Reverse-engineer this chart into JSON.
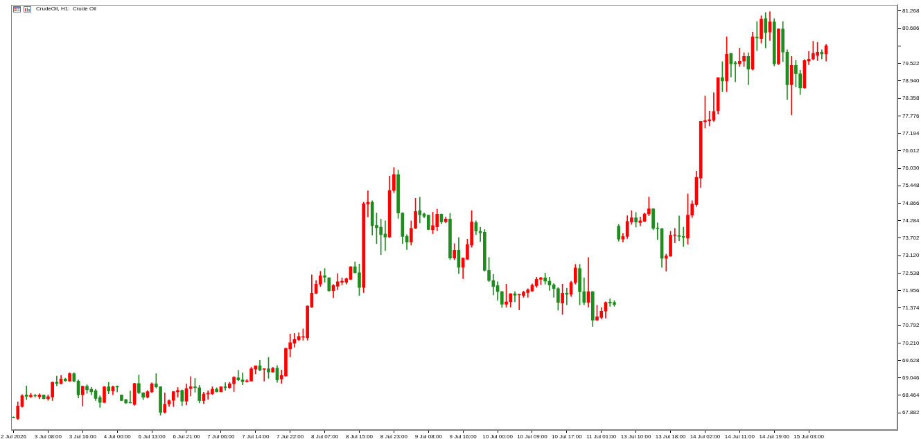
{
  "chart_data": {
    "type": "candlestick",
    "title": "CrudeOil, H1:  Crude Oil",
    "categories": [
      "2 Jul 2026",
      null,
      null,
      null,
      null,
      null,
      null,
      null,
      "3 Jul 08:00",
      null,
      null,
      null,
      null,
      null,
      null,
      null,
      "3 Jul 16:00",
      null,
      null,
      null,
      null,
      null,
      null,
      null,
      "4 Jul 00:00",
      null,
      null,
      null,
      null,
      null,
      null,
      null,
      "6 Jul 13:00",
      null,
      null,
      null,
      null,
      null,
      null,
      null,
      "6 Jul 21:00",
      null,
      null,
      null,
      null,
      null,
      null,
      null,
      "7 Jul 06:00",
      null,
      null,
      null,
      null,
      null,
      null,
      null,
      "7 Jul 14:00",
      null,
      null,
      null,
      null,
      null,
      null,
      null,
      "7 Jul 22:00",
      null,
      null,
      null,
      null,
      null,
      null,
      null,
      "8 Jul 07:00",
      null,
      null,
      null,
      null,
      null,
      null,
      null,
      "8 Jul 15:00",
      null,
      null,
      null,
      null,
      null,
      null,
      null,
      "8 Jul 23:00",
      null,
      null,
      null,
      null,
      null,
      null,
      null,
      "9 Jul 08:00",
      null,
      null,
      null,
      null,
      null,
      null,
      null,
      "9 Jul 16:00",
      null,
      null,
      null,
      null,
      null,
      null,
      null,
      "10 Jul 00:00",
      null,
      null,
      null,
      null,
      null,
      null,
      null,
      "10 Jul 09:00",
      null,
      null,
      null,
      null,
      null,
      null,
      null,
      "10 Jul 17:00",
      null,
      null,
      null,
      null,
      null,
      null,
      null,
      "11 Jul 01:00",
      null,
      null,
      null,
      null,
      null,
      null,
      null,
      "13 Jul 10:00",
      null,
      null,
      null,
      null,
      null,
      null,
      null,
      "13 Jul 18:00",
      null,
      null,
      null,
      null,
      null,
      null,
      null,
      "14 Jul 02:00",
      null,
      null,
      null,
      null,
      null,
      null,
      null,
      "14 Jul 11:00",
      null,
      null,
      null,
      null,
      null,
      null,
      null,
      "14 Jul 19:00",
      null,
      null,
      null,
      null,
      null,
      null,
      null,
      "15 Jul 03:00",
      null,
      null,
      null,
      null,
      null,
      null,
      null,
      null,
      null,
      null,
      null,
      null,
      null,
      null,
      null,
      null,
      null,
      null,
      null,
      null
    ],
    "ohlc": [
      [
        67.74,
        67.75,
        67.71,
        67.72
      ],
      [
        67.69,
        68.25,
        67.65,
        68.11
      ],
      [
        68.09,
        68.49,
        68.07,
        68.45
      ],
      [
        68.48,
        68.78,
        68.32,
        68.43
      ],
      [
        68.42,
        68.53,
        68.39,
        68.47
      ],
      [
        68.45,
        68.5,
        68.4,
        68.44
      ],
      [
        68.42,
        68.52,
        68.35,
        68.48
      ],
      [
        68.48,
        68.48,
        68.35,
        68.35
      ],
      [
        68.35,
        68.48,
        68.3,
        68.42
      ],
      [
        68.41,
        68.91,
        68.29,
        68.9
      ],
      [
        68.9,
        69.11,
        68.78,
        68.86
      ],
      [
        68.86,
        69.13,
        68.84,
        69.01
      ],
      [
        69.01,
        69.04,
        68.93,
        68.95
      ],
      [
        68.94,
        69.22,
        68.93,
        69.19
      ],
      [
        69.19,
        69.22,
        68.91,
        68.94
      ],
      [
        68.94,
        68.98,
        68.38,
        68.48
      ],
      [
        68.48,
        68.78,
        68.11,
        68.77
      ],
      [
        68.77,
        68.82,
        68.53,
        68.65
      ],
      [
        68.67,
        68.73,
        68.48,
        68.58
      ],
      [
        68.62,
        68.67,
        68.29,
        68.36
      ],
      [
        68.39,
        68.45,
        68.06,
        68.23
      ],
      [
        68.23,
        68.76,
        68.21,
        68.75
      ],
      [
        68.75,
        68.9,
        68.52,
        68.61
      ],
      [
        68.61,
        68.78,
        68.48,
        68.75
      ],
      [
        68.77,
        68.78,
        68.58,
        68.74
      ],
      [
        68.48,
        68.48,
        68.28,
        68.29
      ],
      [
        68.32,
        68.34,
        68.19,
        68.21
      ],
      [
        68.22,
        68.61,
        68.21,
        68.21
      ],
      [
        68.16,
        68.87,
        68.13,
        68.86
      ],
      [
        68.86,
        69.14,
        68.52,
        68.55
      ],
      [
        68.55,
        68.56,
        68.32,
        68.4
      ],
      [
        68.4,
        68.63,
        68.38,
        68.59
      ],
      [
        68.58,
        68.88,
        68.55,
        68.85
      ],
      [
        68.85,
        69.19,
        68.71,
        68.75
      ],
      [
        68.75,
        68.75,
        67.8,
        67.9
      ],
      [
        67.9,
        68.55,
        67.87,
        68.17
      ],
      [
        68.17,
        68.32,
        68.09,
        68.29
      ],
      [
        68.3,
        68.6,
        68.09,
        68.59
      ],
      [
        68.58,
        68.73,
        68.4,
        68.63
      ],
      [
        68.63,
        68.65,
        68.12,
        68.27
      ],
      [
        68.27,
        68.84,
        68.15,
        68.69
      ],
      [
        68.69,
        69.09,
        68.44,
        68.75
      ],
      [
        68.75,
        69.03,
        68.57,
        68.72
      ],
      [
        68.72,
        68.8,
        68.21,
        68.29
      ],
      [
        68.29,
        68.57,
        68.19,
        68.51
      ],
      [
        68.51,
        68.62,
        68.33,
        68.54
      ],
      [
        68.52,
        68.75,
        68.49,
        68.67
      ],
      [
        68.67,
        68.72,
        68.58,
        68.58
      ],
      [
        68.58,
        68.75,
        68.58,
        68.75
      ],
      [
        68.75,
        68.89,
        68.63,
        68.72
      ],
      [
        68.72,
        68.9,
        68.69,
        68.85
      ],
      [
        68.85,
        69.09,
        68.59,
        69.07
      ],
      [
        69.05,
        69.3,
        68.95,
        68.98
      ],
      [
        68.98,
        69.21,
        68.82,
        68.92
      ],
      [
        68.92,
        69,
        68.9,
        68.95
      ],
      [
        68.94,
        69.4,
        68.94,
        69.35
      ],
      [
        69.34,
        69.45,
        69.18,
        69.45
      ],
      [
        69.45,
        69.63,
        69.28,
        69.31
      ],
      [
        69.33,
        69.35,
        68.94,
        69.34
      ],
      [
        69.35,
        69.73,
        69.03,
        69.24
      ],
      [
        69.24,
        69.4,
        69.23,
        69.37
      ],
      [
        69.37,
        69.46,
        68.9,
        68.98
      ],
      [
        69.01,
        69.31,
        68.86,
        69.13
      ],
      [
        69.11,
        70.04,
        69.1,
        70.03
      ],
      [
        70.01,
        70.51,
        69.74,
        70.22
      ],
      [
        70.2,
        70.53,
        70.07,
        70.33
      ],
      [
        70.32,
        70.55,
        70.28,
        70.43
      ],
      [
        70.4,
        70.68,
        70.3,
        70.41
      ],
      [
        70.38,
        71.45,
        70.3,
        71.44
      ],
      [
        71.4,
        72.48,
        71.39,
        71.87
      ],
      [
        71.86,
        72.29,
        71.85,
        72.17
      ],
      [
        72.17,
        72.6,
        72.09,
        72.45
      ],
      [
        72.45,
        72.69,
        72.23,
        72.4
      ],
      [
        72.38,
        72.39,
        71.93,
        71.95
      ],
      [
        71.95,
        72.16,
        71.72,
        72.13
      ],
      [
        72.1,
        72.52,
        71.98,
        72.25
      ],
      [
        72.23,
        72.38,
        72.14,
        72.27
      ],
      [
        72.23,
        72.38,
        72.17,
        72.35
      ],
      [
        72.33,
        72.76,
        72.31,
        72.75
      ],
      [
        72.75,
        72.91,
        72.54,
        72.55
      ],
      [
        72.55,
        72.84,
        71.79,
        72.06
      ],
      [
        72.06,
        74.9,
        71.89,
        74.85
      ],
      [
        74.84,
        75.28,
        74.41,
        74.9
      ],
      [
        74.9,
        74.95,
        73.8,
        74.12
      ],
      [
        74.13,
        74.54,
        73.52,
        74.05
      ],
      [
        74.07,
        74.34,
        73.15,
        73.82
      ],
      [
        73.84,
        74.28,
        73.29,
        73.74
      ],
      [
        73.74,
        75.77,
        73.72,
        75.29
      ],
      [
        75.29,
        76.06,
        75.22,
        75.82
      ],
      [
        75.82,
        75.97,
        74.36,
        74.54
      ],
      [
        74.54,
        74.55,
        73.52,
        73.76
      ],
      [
        73.76,
        73.82,
        73.32,
        73.57
      ],
      [
        73.57,
        74.28,
        73.47,
        74.03
      ],
      [
        74.03,
        75.03,
        74.02,
        74.59
      ],
      [
        74.62,
        75.07,
        74.21,
        74.48
      ],
      [
        74.51,
        74.54,
        74.38,
        74.43
      ],
      [
        74.47,
        74.47,
        73.98,
        73.99
      ],
      [
        73.98,
        74.57,
        73.85,
        74.12
      ],
      [
        74.08,
        74.67,
        73.95,
        74.5
      ],
      [
        74.5,
        74.51,
        74.18,
        74.24
      ],
      [
        74.25,
        74.41,
        74.21,
        74.34
      ],
      [
        74.34,
        74.53,
        72.98,
        73.04
      ],
      [
        73.04,
        73.52,
        72.98,
        73.3
      ],
      [
        73.3,
        73.72,
        72.52,
        72.73
      ],
      [
        72.73,
        73.04,
        72.35,
        73.04
      ],
      [
        73,
        73.67,
        72.99,
        73.49
      ],
      [
        73.47,
        74.62,
        73.4,
        74.24
      ],
      [
        74.22,
        74.28,
        73.82,
        73.94
      ],
      [
        73.93,
        74.07,
        73.59,
        73.88
      ],
      [
        73.9,
        73.99,
        72.6,
        72.63
      ],
      [
        72.63,
        73.06,
        72.25,
        72.29
      ],
      [
        72.29,
        72.5,
        71.81,
        72.09
      ],
      [
        72.12,
        72.25,
        71.63,
        71.92
      ],
      [
        71.92,
        71.93,
        71.39,
        71.5
      ],
      [
        71.5,
        72.17,
        71.4,
        71.58
      ],
      [
        71.58,
        71.86,
        71.4,
        71.85
      ],
      [
        71.85,
        71.92,
        71.58,
        71.8
      ],
      [
        71.81,
        71.83,
        71.31,
        71.82
      ],
      [
        71.79,
        71.94,
        71.73,
        71.9
      ],
      [
        71.89,
        72.02,
        71.73,
        71.98
      ],
      [
        71.94,
        72.18,
        71.92,
        72.13
      ],
      [
        72.12,
        72.4,
        72.06,
        72.33
      ],
      [
        72.33,
        72.4,
        72.15,
        72.38
      ],
      [
        72.38,
        72.54,
        72.17,
        72.27
      ],
      [
        72.27,
        72.4,
        71.96,
        72.14
      ],
      [
        72.15,
        72.19,
        71.73,
        72.02
      ],
      [
        72.02,
        72.06,
        71.3,
        71.56
      ],
      [
        71.54,
        72.17,
        71.16,
        71.87
      ],
      [
        71.87,
        72.04,
        71.48,
        71.83
      ],
      [
        71.83,
        72.27,
        71.76,
        72.22
      ],
      [
        72.22,
        72.83,
        72.17,
        72.71
      ],
      [
        72.69,
        72.83,
        71.48,
        71.92
      ],
      [
        71.92,
        72.38,
        71.48,
        71.56
      ],
      [
        71.56,
        73.06,
        71.4,
        71.92
      ],
      [
        71.92,
        71.93,
        70.76,
        70.97
      ],
      [
        70.97,
        71.47,
        70.96,
        71.08
      ],
      [
        71.06,
        71.39,
        71.01,
        71.27
      ],
      [
        71.27,
        71.58,
        71.04,
        71.56
      ],
      [
        71.57,
        71.68,
        71.43,
        71.54
      ],
      [
        71.56,
        71.62,
        71.43,
        71.49
      ],
      [
        74.1,
        74.16,
        73.6,
        73.67
      ],
      [
        73.67,
        73.86,
        73.57,
        73.76
      ],
      [
        73.76,
        74.45,
        73.69,
        74.26
      ],
      [
        74.24,
        74.62,
        74.16,
        74.38
      ],
      [
        74.38,
        74.56,
        74.07,
        74.24
      ],
      [
        74.22,
        74.41,
        74.11,
        74.28
      ],
      [
        74.26,
        74.54,
        74.25,
        74.51
      ],
      [
        74.51,
        75.07,
        74.45,
        74.68
      ],
      [
        74.68,
        74.69,
        73.98,
        74.03
      ],
      [
        74.03,
        74.21,
        73.65,
        74.02
      ],
      [
        74.02,
        74.03,
        72.73,
        73.03
      ],
      [
        73.03,
        73.17,
        72.6,
        73.11
      ],
      [
        73.1,
        73.93,
        73.1,
        73.8
      ],
      [
        73.79,
        74.03,
        73.55,
        73.8
      ],
      [
        73.79,
        74.44,
        73.61,
        73.76
      ],
      [
        73.76,
        74.07,
        73.42,
        73.73
      ],
      [
        73.7,
        75.18,
        73.5,
        74.47
      ],
      [
        74.47,
        74.95,
        74.39,
        74.84
      ],
      [
        74.82,
        75.93,
        74.76,
        75.73
      ],
      [
        75.7,
        77.6,
        75.39,
        77.59
      ],
      [
        77.58,
        78.44,
        77.37,
        77.62
      ],
      [
        77.61,
        77.94,
        77.44,
        77.65
      ],
      [
        77.63,
        78.55,
        77.59,
        77.92
      ],
      [
        77.95,
        79.05,
        77.84,
        79.05
      ],
      [
        79.05,
        79.58,
        78.58,
        78.94
      ],
      [
        78.94,
        80.41,
        78.58,
        79.83
      ],
      [
        79.86,
        79.86,
        79.07,
        79.51
      ],
      [
        79.55,
        79.6,
        78.91,
        79.51
      ],
      [
        79.51,
        80.04,
        79.42,
        79.6
      ],
      [
        79.6,
        79.88,
        79.42,
        79.76
      ],
      [
        79.76,
        79.88,
        78.81,
        79.33
      ],
      [
        79.33,
        80.57,
        79.3,
        80.41
      ],
      [
        80.4,
        80.92,
        79.95,
        80.37
      ],
      [
        80.35,
        81.11,
        80.2,
        81
      ],
      [
        81.02,
        81.22,
        80.04,
        80.55
      ],
      [
        80.57,
        81.25,
        80.29,
        80.91
      ],
      [
        80.91,
        81.02,
        79.44,
        79.51
      ],
      [
        79.51,
        80.68,
        79.48,
        80.67
      ],
      [
        80.67,
        80.92,
        79.58,
        79.9
      ],
      [
        79.9,
        79.98,
        78.32,
        78.81
      ],
      [
        78.81,
        79.76,
        77.81,
        79.46
      ],
      [
        79.46,
        79.62,
        78.74,
        79.18
      ],
      [
        79.18,
        79.3,
        78.49,
        78.71
      ],
      [
        78.71,
        79.65,
        78.69,
        79.62
      ],
      [
        79.6,
        79.92,
        79.48,
        79.67
      ],
      [
        79.67,
        80.26,
        79.64,
        79.86
      ],
      [
        79.79,
        80.23,
        79.62,
        79.9
      ],
      [
        79.9,
        79.98,
        79.67,
        79.84
      ],
      [
        79.84,
        80.16,
        79.6,
        80.11
      ],
      null,
      null,
      null,
      null,
      null,
      null,
      null,
      null,
      null,
      null,
      null,
      null,
      null,
      null,
      null,
      null
    ],
    "colors": [
      "#1e8c1e",
      "#ff0000",
      "#ff0000",
      "#1e8c1e",
      "#ff0000",
      "#1e8c1e",
      "#ff0000",
      "#1e8c1e",
      "#ff0000",
      "#ff0000",
      "#1e8c1e",
      "#ff0000",
      "#1e8c1e",
      "#ff0000",
      "#1e8c1e",
      "#1e8c1e",
      "#ff0000",
      "#1e8c1e",
      "#1e8c1e",
      "#1e8c1e",
      "#1e8c1e",
      "#ff0000",
      "#1e8c1e",
      "#ff0000",
      "#1e8c1e",
      "#1e8c1e",
      "#1e8c1e",
      "#1e8c1e",
      "#ff0000",
      "#1e8c1e",
      "#1e8c1e",
      "#ff0000",
      "#ff0000",
      "#1e8c1e",
      "#1e8c1e",
      "#ff0000",
      "#ff0000",
      "#ff0000",
      "#ff0000",
      "#1e8c1e",
      "#ff0000",
      "#ff0000",
      "#1e8c1e",
      "#1e8c1e",
      "#ff0000",
      "#ff0000",
      "#ff0000",
      "#1e8c1e",
      "#ff0000",
      "#1e8c1e",
      "#ff0000",
      "#ff0000",
      "#1e8c1e",
      "#1e8c1e",
      "#ff0000",
      "#ff0000",
      "#ff0000",
      "#1e8c1e",
      "#ff0000",
      "#1e8c1e",
      "#ff0000",
      "#1e8c1e",
      "#ff0000",
      "#ff0000",
      "#ff0000",
      "#ff0000",
      "#ff0000",
      "#ff0000",
      "#ff0000",
      "#ff0000",
      "#ff0000",
      "#ff0000",
      "#1e8c1e",
      "#1e8c1e",
      "#ff0000",
      "#ff0000",
      "#ff0000",
      "#ff0000",
      "#ff0000",
      "#1e8c1e",
      "#1e8c1e",
      "#ff0000",
      "#ff0000",
      "#1e8c1e",
      "#1e8c1e",
      "#1e8c1e",
      "#1e8c1e",
      "#ff0000",
      "#ff0000",
      "#1e8c1e",
      "#1e8c1e",
      "#1e8c1e",
      "#ff0000",
      "#ff0000",
      "#1e8c1e",
      "#1e8c1e",
      "#1e8c1e",
      "#ff0000",
      "#ff0000",
      "#1e8c1e",
      "#ff0000",
      "#1e8c1e",
      "#ff0000",
      "#1e8c1e",
      "#ff0000",
      "#ff0000",
      "#ff0000",
      "#1e8c1e",
      "#1e8c1e",
      "#1e8c1e",
      "#1e8c1e",
      "#1e8c1e",
      "#1e8c1e",
      "#1e8c1e",
      "#ff0000",
      "#ff0000",
      "#1e8c1e",
      "#ff0000",
      "#ff0000",
      "#ff0000",
      "#ff0000",
      "#ff0000",
      "#ff0000",
      "#1e8c1e",
      "#1e8c1e",
      "#1e8c1e",
      "#1e8c1e",
      "#ff0000",
      "#1e8c1e",
      "#ff0000",
      "#ff0000",
      "#1e8c1e",
      "#1e8c1e",
      "#ff0000",
      "#1e8c1e",
      "#ff0000",
      "#ff0000",
      "#ff0000",
      "#1e8c1e",
      "#1e8c1e",
      "#1e8c1e",
      "#ff0000",
      "#ff0000",
      "#ff0000",
      "#1e8c1e",
      "#ff0000",
      "#ff0000",
      "#ff0000",
      "#1e8c1e",
      "#1e8c1e",
      "#1e8c1e",
      "#ff0000",
      "#ff0000",
      "#ff0000",
      "#1e8c1e",
      "#1e8c1e",
      "#ff0000",
      "#ff0000",
      "#ff0000",
      "#ff0000",
      "#ff0000",
      "#ff0000",
      "#ff0000",
      "#ff0000",
      "#1e8c1e",
      "#ff0000",
      "#1e8c1e",
      "#1e8c1e",
      "#ff0000",
      "#ff0000",
      "#1e8c1e",
      "#ff0000",
      "#1e8c1e",
      "#ff0000",
      "#1e8c1e",
      "#ff0000",
      "#1e8c1e",
      "#ff0000",
      "#1e8c1e",
      "#1e8c1e",
      "#ff0000",
      "#1e8c1e",
      "#1e8c1e",
      "#ff0000",
      "#ff0000",
      "#ff0000",
      "#ff0000",
      "#1e8c1e",
      "#ff0000",
      null,
      null,
      null,
      null,
      null,
      null,
      null,
      null,
      null,
      null,
      null,
      null,
      null,
      null,
      null,
      null
    ],
    "ylim": [
      67.31,
      81.48
    ],
    "yticks": [
      67.882,
      68.464,
      69.046,
      69.628,
      {
        "value": 70.21,
        "label": "70.210"
      },
      70.792,
      71.374,
      71.956,
      72.538,
      {
        "value": 73.12,
        "label": "73.120"
      },
      73.702,
      74.284,
      74.866,
      75.448,
      {
        "value": 76.03,
        "label": "76.030"
      },
      76.612,
      77.194,
      77.776,
      78.358,
      {
        "value": 78.94,
        "label": "78.940"
      },
      79.522,
      {
        "value": 80.104,
        "label": null
      },
      80.686,
      81.268
    ]
  }
}
